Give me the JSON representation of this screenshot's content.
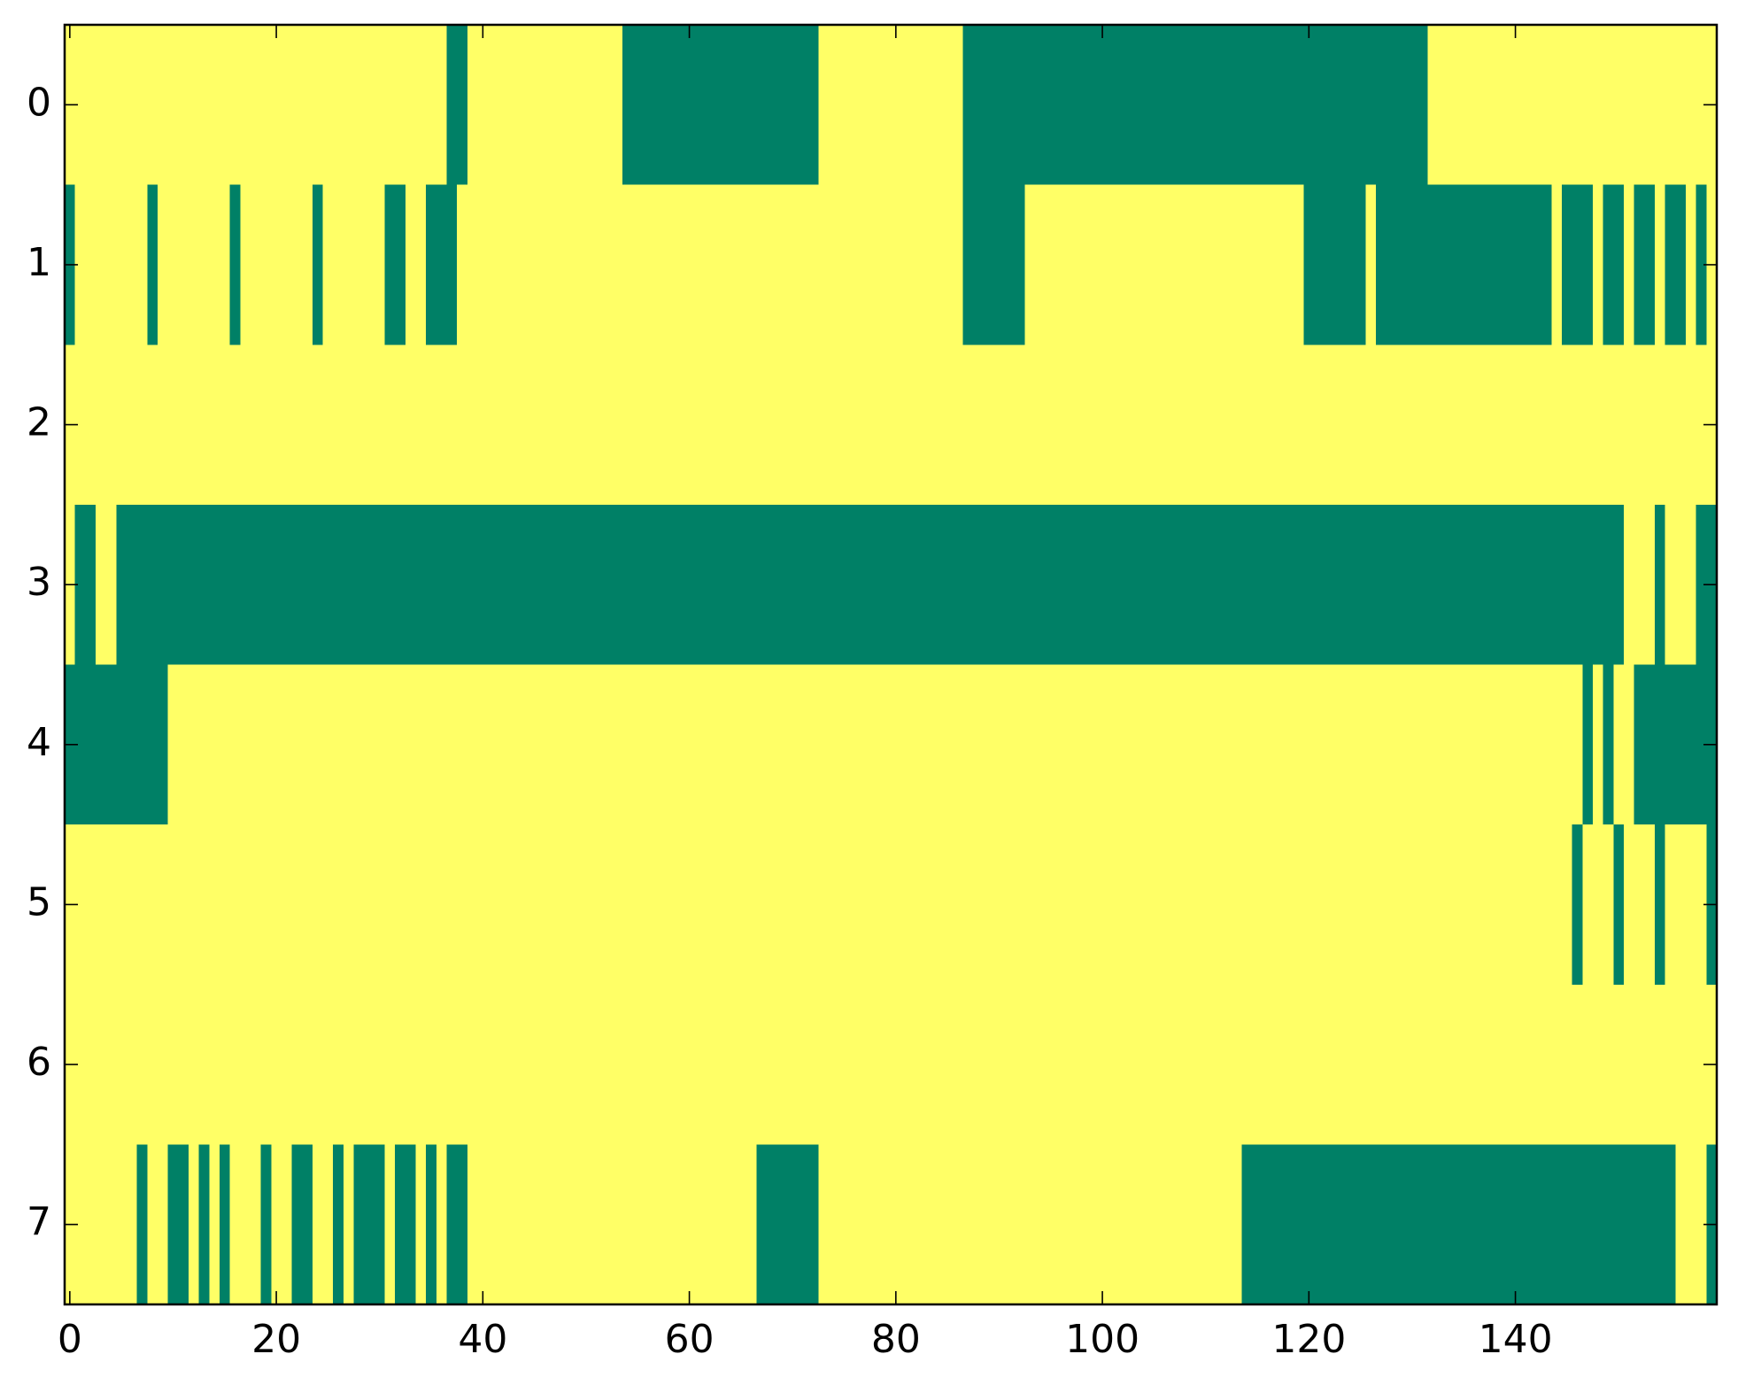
{
  "chart_data": {
    "type": "heatmap",
    "z": [
      [
        1,
        1,
        1,
        1,
        1,
        1,
        1,
        1,
        1,
        1,
        1,
        1,
        1,
        1,
        1,
        1,
        1,
        1,
        1,
        1,
        1,
        1,
        1,
        1,
        1,
        1,
        1,
        1,
        1,
        1,
        1,
        1,
        1,
        1,
        1,
        1,
        1,
        0,
        0,
        1,
        1,
        1,
        1,
        1,
        1,
        1,
        1,
        1,
        1,
        1,
        1,
        1,
        1,
        1,
        0,
        0,
        0,
        0,
        0,
        0,
        0,
        0,
        0,
        0,
        0,
        0,
        0,
        0,
        0,
        0,
        0,
        0,
        0,
        1,
        1,
        1,
        1,
        1,
        1,
        1,
        1,
        1,
        1,
        1,
        1,
        1,
        1,
        0,
        0,
        0,
        0,
        0,
        0,
        0,
        0,
        0,
        0,
        0,
        0,
        0,
        0,
        0,
        0,
        0,
        0,
        0,
        0,
        0,
        0,
        0,
        0,
        0,
        0,
        0,
        0,
        0,
        0,
        0,
        0,
        0,
        0,
        0,
        0,
        0,
        0,
        0,
        0,
        0,
        0,
        0,
        0,
        0,
        1,
        1,
        1,
        1,
        1,
        1,
        1,
        1,
        1,
        1,
        1,
        1,
        1,
        1,
        1,
        1,
        1,
        1,
        1,
        1,
        1,
        1,
        1,
        1,
        1,
        1,
        1,
        1
      ],
      [
        0,
        1,
        1,
        1,
        1,
        1,
        1,
        1,
        0,
        1,
        1,
        1,
        1,
        1,
        1,
        1,
        0,
        1,
        1,
        1,
        1,
        1,
        1,
        1,
        0,
        1,
        1,
        1,
        1,
        1,
        1,
        0,
        0,
        1,
        1,
        0,
        0,
        0,
        1,
        1,
        1,
        1,
        1,
        1,
        1,
        1,
        1,
        1,
        1,
        1,
        1,
        1,
        1,
        1,
        1,
        1,
        1,
        1,
        1,
        1,
        1,
        1,
        1,
        1,
        1,
        1,
        1,
        1,
        1,
        1,
        1,
        1,
        1,
        1,
        1,
        1,
        1,
        1,
        1,
        1,
        1,
        1,
        1,
        1,
        1,
        1,
        1,
        0,
        0,
        0,
        0,
        0,
        0,
        1,
        1,
        1,
        1,
        1,
        1,
        1,
        1,
        1,
        1,
        1,
        1,
        1,
        1,
        1,
        1,
        1,
        1,
        1,
        1,
        1,
        1,
        1,
        1,
        1,
        1,
        1,
        0,
        0,
        0,
        0,
        0,
        0,
        1,
        0,
        0,
        0,
        0,
        0,
        0,
        0,
        0,
        0,
        0,
        0,
        0,
        0,
        0,
        0,
        0,
        0,
        1,
        0,
        0,
        0,
        1,
        0,
        0,
        1,
        0,
        0,
        1,
        0,
        0,
        1,
        0,
        1
      ],
      [
        1,
        1,
        1,
        1,
        1,
        1,
        1,
        1,
        1,
        1,
        1,
        1,
        1,
        1,
        1,
        1,
        1,
        1,
        1,
        1,
        1,
        1,
        1,
        1,
        1,
        1,
        1,
        1,
        1,
        1,
        1,
        1,
        1,
        1,
        1,
        1,
        1,
        1,
        1,
        1,
        1,
        1,
        1,
        1,
        1,
        1,
        1,
        1,
        1,
        1,
        1,
        1,
        1,
        1,
        1,
        1,
        1,
        1,
        1,
        1,
        1,
        1,
        1,
        1,
        1,
        1,
        1,
        1,
        1,
        1,
        1,
        1,
        1,
        1,
        1,
        1,
        1,
        1,
        1,
        1,
        1,
        1,
        1,
        1,
        1,
        1,
        1,
        1,
        1,
        1,
        1,
        1,
        1,
        1,
        1,
        1,
        1,
        1,
        1,
        1,
        1,
        1,
        1,
        1,
        1,
        1,
        1,
        1,
        1,
        1,
        1,
        1,
        1,
        1,
        1,
        1,
        1,
        1,
        1,
        1,
        1,
        1,
        1,
        1,
        1,
        1,
        1,
        1,
        1,
        1,
        1,
        1,
        1,
        1,
        1,
        1,
        1,
        1,
        1,
        1,
        1,
        1,
        1,
        1,
        1,
        1,
        1,
        1,
        1,
        1,
        1,
        1,
        1,
        1,
        1,
        1,
        1,
        1,
        1,
        1
      ],
      [
        1,
        0,
        0,
        1,
        1,
        0,
        0,
        0,
        0,
        0,
        0,
        0,
        0,
        0,
        0,
        0,
        0,
        0,
        0,
        0,
        0,
        0,
        0,
        0,
        0,
        0,
        0,
        0,
        0,
        0,
        0,
        0,
        0,
        0,
        0,
        0,
        0,
        0,
        0,
        0,
        0,
        0,
        0,
        0,
        0,
        0,
        0,
        0,
        0,
        0,
        0,
        0,
        0,
        0,
        0,
        0,
        0,
        0,
        0,
        0,
        0,
        0,
        0,
        0,
        0,
        0,
        0,
        0,
        0,
        0,
        0,
        0,
        0,
        0,
        0,
        0,
        0,
        0,
        0,
        0,
        0,
        0,
        0,
        0,
        0,
        0,
        0,
        0,
        0,
        0,
        0,
        0,
        0,
        0,
        0,
        0,
        0,
        0,
        0,
        0,
        0,
        0,
        0,
        0,
        0,
        0,
        0,
        0,
        0,
        0,
        0,
        0,
        0,
        0,
        0,
        0,
        0,
        0,
        0,
        0,
        0,
        0,
        0,
        0,
        0,
        0,
        0,
        0,
        0,
        0,
        0,
        0,
        0,
        0,
        0,
        0,
        0,
        0,
        0,
        0,
        0,
        0,
        0,
        0,
        0,
        0,
        0,
        0,
        0,
        0,
        0,
        1,
        1,
        1,
        0,
        1,
        1,
        1,
        0,
        0
      ],
      [
        0,
        0,
        0,
        0,
        0,
        0,
        0,
        0,
        0,
        0,
        1,
        1,
        1,
        1,
        1,
        1,
        1,
        1,
        1,
        1,
        1,
        1,
        1,
        1,
        1,
        1,
        1,
        1,
        1,
        1,
        1,
        1,
        1,
        1,
        1,
        1,
        1,
        1,
        1,
        1,
        1,
        1,
        1,
        1,
        1,
        1,
        1,
        1,
        1,
        1,
        1,
        1,
        1,
        1,
        1,
        1,
        1,
        1,
        1,
        1,
        1,
        1,
        1,
        1,
        1,
        1,
        1,
        1,
        1,
        1,
        1,
        1,
        1,
        1,
        1,
        1,
        1,
        1,
        1,
        1,
        1,
        1,
        1,
        1,
        1,
        1,
        1,
        1,
        1,
        1,
        1,
        1,
        1,
        1,
        1,
        1,
        1,
        1,
        1,
        1,
        1,
        1,
        1,
        1,
        1,
        1,
        1,
        1,
        1,
        1,
        1,
        1,
        1,
        1,
        1,
        1,
        1,
        1,
        1,
        1,
        1,
        1,
        1,
        1,
        1,
        1,
        1,
        1,
        1,
        1,
        1,
        1,
        1,
        1,
        1,
        1,
        1,
        1,
        1,
        1,
        1,
        1,
        1,
        1,
        1,
        1,
        1,
        0,
        1,
        0,
        1,
        1,
        0,
        0,
        0,
        0,
        0,
        0,
        0,
        0
      ],
      [
        1,
        1,
        1,
        1,
        1,
        1,
        1,
        1,
        1,
        1,
        1,
        1,
        1,
        1,
        1,
        1,
        1,
        1,
        1,
        1,
        1,
        1,
        1,
        1,
        1,
        1,
        1,
        1,
        1,
        1,
        1,
        1,
        1,
        1,
        1,
        1,
        1,
        1,
        1,
        1,
        1,
        1,
        1,
        1,
        1,
        1,
        1,
        1,
        1,
        1,
        1,
        1,
        1,
        1,
        1,
        1,
        1,
        1,
        1,
        1,
        1,
        1,
        1,
        1,
        1,
        1,
        1,
        1,
        1,
        1,
        1,
        1,
        1,
        1,
        1,
        1,
        1,
        1,
        1,
        1,
        1,
        1,
        1,
        1,
        1,
        1,
        1,
        1,
        1,
        1,
        1,
        1,
        1,
        1,
        1,
        1,
        1,
        1,
        1,
        1,
        1,
        1,
        1,
        1,
        1,
        1,
        1,
        1,
        1,
        1,
        1,
        1,
        1,
        1,
        1,
        1,
        1,
        1,
        1,
        1,
        1,
        1,
        1,
        1,
        1,
        1,
        1,
        1,
        1,
        1,
        1,
        1,
        1,
        1,
        1,
        1,
        1,
        1,
        1,
        1,
        1,
        1,
        1,
        1,
        1,
        1,
        0,
        1,
        1,
        1,
        0,
        1,
        1,
        1,
        0,
        1,
        1,
        1,
        1,
        0
      ],
      [
        1,
        1,
        1,
        1,
        1,
        1,
        1,
        1,
        1,
        1,
        1,
        1,
        1,
        1,
        1,
        1,
        1,
        1,
        1,
        1,
        1,
        1,
        1,
        1,
        1,
        1,
        1,
        1,
        1,
        1,
        1,
        1,
        1,
        1,
        1,
        1,
        1,
        1,
        1,
        1,
        1,
        1,
        1,
        1,
        1,
        1,
        1,
        1,
        1,
        1,
        1,
        1,
        1,
        1,
        1,
        1,
        1,
        1,
        1,
        1,
        1,
        1,
        1,
        1,
        1,
        1,
        1,
        1,
        1,
        1,
        1,
        1,
        1,
        1,
        1,
        1,
        1,
        1,
        1,
        1,
        1,
        1,
        1,
        1,
        1,
        1,
        1,
        1,
        1,
        1,
        1,
        1,
        1,
        1,
        1,
        1,
        1,
        1,
        1,
        1,
        1,
        1,
        1,
        1,
        1,
        1,
        1,
        1,
        1,
        1,
        1,
        1,
        1,
        1,
        1,
        1,
        1,
        1,
        1,
        1,
        1,
        1,
        1,
        1,
        1,
        1,
        1,
        1,
        1,
        1,
        1,
        1,
        1,
        1,
        1,
        1,
        1,
        1,
        1,
        1,
        1,
        1,
        1,
        1,
        1,
        1,
        1,
        1,
        1,
        1,
        1,
        1,
        1,
        1,
        1,
        1,
        1,
        1,
        1,
        1
      ],
      [
        1,
        1,
        1,
        1,
        1,
        1,
        1,
        0,
        1,
        1,
        0,
        0,
        1,
        0,
        1,
        0,
        1,
        1,
        1,
        0,
        1,
        1,
        0,
        0,
        1,
        1,
        0,
        1,
        0,
        0,
        0,
        1,
        0,
        0,
        1,
        0,
        1,
        0,
        0,
        1,
        1,
        1,
        1,
        1,
        1,
        1,
        1,
        1,
        1,
        1,
        1,
        1,
        1,
        1,
        1,
        1,
        1,
        1,
        1,
        1,
        1,
        1,
        1,
        1,
        1,
        1,
        1,
        0,
        0,
        0,
        0,
        0,
        0,
        1,
        1,
        1,
        1,
        1,
        1,
        1,
        1,
        1,
        1,
        1,
        1,
        1,
        1,
        1,
        1,
        1,
        1,
        1,
        1,
        1,
        1,
        1,
        1,
        1,
        1,
        1,
        1,
        1,
        1,
        1,
        1,
        1,
        1,
        1,
        1,
        1,
        1,
        1,
        1,
        1,
        0,
        0,
        0,
        0,
        0,
        0,
        0,
        0,
        0,
        0,
        0,
        0,
        0,
        0,
        0,
        0,
        0,
        0,
        0,
        0,
        0,
        0,
        0,
        0,
        0,
        0,
        0,
        0,
        0,
        0,
        0,
        0,
        0,
        0,
        0,
        0,
        0,
        0,
        0,
        0,
        0,
        0,
        1,
        1,
        1,
        0
      ]
    ],
    "colormap": [
      "#008066",
      "#ffff66"
    ],
    "xlim": [
      -0.5,
      159.5
    ],
    "ylim": [
      7.5,
      -0.5
    ],
    "xticks": [
      0,
      20,
      40,
      60,
      80,
      100,
      120,
      140
    ],
    "yticks": [
      0,
      1,
      2,
      3,
      4,
      5,
      6,
      7
    ]
  }
}
